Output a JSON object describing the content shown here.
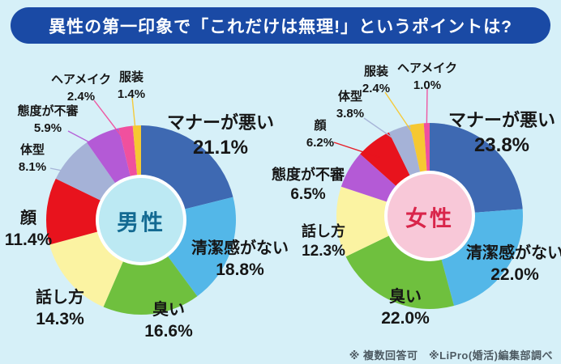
{
  "title": "異性の第一印象で「これだけは無理!」というポイントは?",
  "note": "※ 複数回答可　※LiPro(婚活)編集部調べ",
  "colors": {
    "background": "#d6f0f8",
    "banner": "#1a4aa5",
    "banner_text": "#ffffff",
    "label_text": "#161616",
    "note_text": "#4d5a62"
  },
  "chart_data": [
    {
      "type": "pie",
      "style": "donut",
      "title": "男性",
      "unit": "%",
      "start_angle": "top",
      "direction": "clockwise",
      "categories": [
        "マナーが悪い",
        "清潔感がない",
        "臭い",
        "話し方",
        "顔",
        "体型",
        "態度が不審",
        "ヘアメイク",
        "服装"
      ],
      "values": [
        21.1,
        18.8,
        16.6,
        14.3,
        11.4,
        8.1,
        5.9,
        2.4,
        1.4
      ],
      "slice_colors": [
        "#3e69b2",
        "#53b7e8",
        "#6fc03e",
        "#fbf3a2",
        "#e8131d",
        "#a5b2d7",
        "#b45ad6",
        "#f0509e",
        "#f6c832"
      ],
      "center_color": "#bce9f3",
      "center_text_color": "#136a92"
    },
    {
      "type": "pie",
      "style": "donut",
      "title": "女性",
      "unit": "%",
      "start_angle": "top",
      "direction": "clockwise",
      "categories": [
        "マナーが悪い",
        "清潔感がない",
        "臭い",
        "話し方",
        "態度が不審",
        "顔",
        "体型",
        "服装",
        "ヘアメイク"
      ],
      "values": [
        23.8,
        22.0,
        22.0,
        12.3,
        6.5,
        6.2,
        3.8,
        2.4,
        1.0
      ],
      "slice_colors": [
        "#3e69b2",
        "#53b7e8",
        "#6fc03e",
        "#fbf3a2",
        "#b45ad6",
        "#e8131d",
        "#a5b2d7",
        "#f6c832",
        "#f0509e"
      ],
      "center_color": "#f8c8d8",
      "center_text_color": "#d9254a"
    }
  ]
}
